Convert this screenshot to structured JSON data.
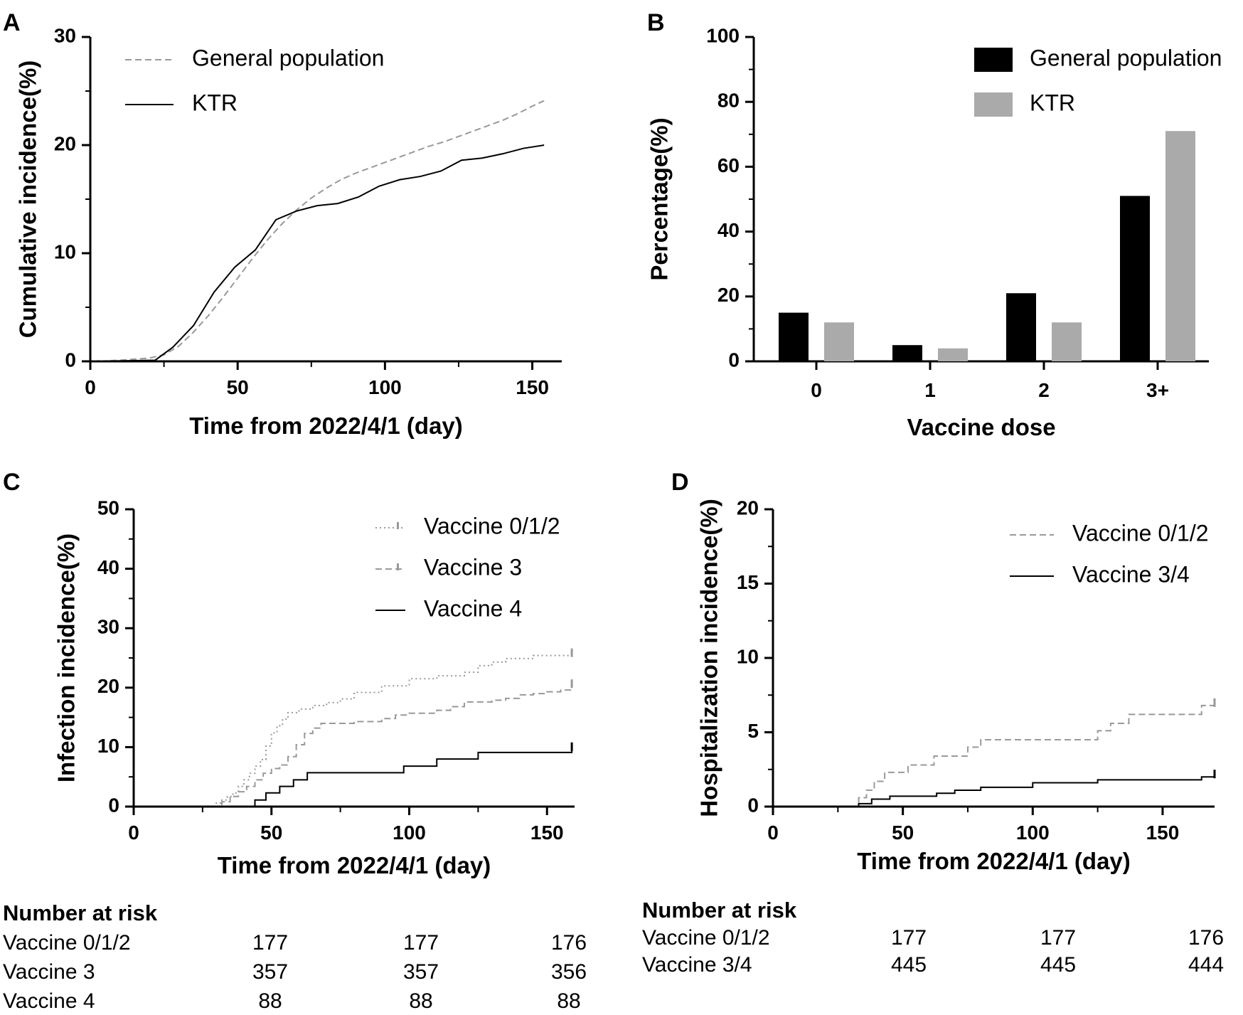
{
  "panels": {
    "A": {
      "label": "A"
    },
    "B": {
      "label": "B"
    },
    "C": {
      "label": "C"
    },
    "D": {
      "label": "D"
    }
  },
  "chart_data": [
    {
      "panel": "A",
      "type": "line",
      "xlabel": "Time from 2022/4/1 (day)",
      "ylabel": "Cumulative incidence(%)",
      "xlim": [
        0,
        160
      ],
      "ylim": [
        0,
        30
      ],
      "xticks": [
        0,
        50,
        100,
        150
      ],
      "yticks": [
        0,
        10,
        20,
        30
      ],
      "legend_position": "top-left",
      "series": [
        {
          "name": "General population",
          "style": "dashed",
          "color": "#999999",
          "x": [
            0,
            10,
            20,
            25,
            30,
            35,
            40,
            45,
            50,
            55,
            60,
            65,
            70,
            75,
            80,
            85,
            90,
            95,
            100,
            105,
            110,
            115,
            120,
            125,
            130,
            135,
            140,
            145,
            150,
            154
          ],
          "y": [
            0,
            0.1,
            0.3,
            0.6,
            1.4,
            2.7,
            4.2,
            5.9,
            7.7,
            9.5,
            11.2,
            12.7,
            14.0,
            15.1,
            16.0,
            16.8,
            17.4,
            17.9,
            18.4,
            18.9,
            19.4,
            19.9,
            20.3,
            20.8,
            21.3,
            21.8,
            22.3,
            22.9,
            23.6,
            24.1
          ]
        },
        {
          "name": "KTR",
          "style": "solid",
          "color": "#000000",
          "x": [
            0,
            22,
            28,
            35,
            42,
            49,
            56,
            63,
            70,
            77,
            84,
            91,
            98,
            105,
            112,
            119,
            126,
            133,
            140,
            147,
            154
          ],
          "y": [
            0,
            0.1,
            1.3,
            3.3,
            6.4,
            8.7,
            10.3,
            13.1,
            13.9,
            14.4,
            14.6,
            15.2,
            16.2,
            16.8,
            17.1,
            17.6,
            18.6,
            18.8,
            19.2,
            19.7,
            20.0
          ]
        }
      ]
    },
    {
      "panel": "B",
      "type": "bar",
      "xlabel": "Vaccine dose",
      "ylabel": "Percentage(%)",
      "categories": [
        "0",
        "1",
        "2",
        "3+"
      ],
      "ylim": [
        0,
        100
      ],
      "yticks": [
        0,
        20,
        40,
        60,
        80,
        100
      ],
      "legend_position": "top-right",
      "series": [
        {
          "name": "General population",
          "color": "#000000",
          "values": [
            15,
            5,
            21,
            51
          ]
        },
        {
          "name": "KTR",
          "color": "#aaaaaa",
          "values": [
            12,
            4,
            12,
            71
          ]
        }
      ]
    },
    {
      "panel": "C",
      "type": "line",
      "xlabel": "Time from 2022/4/1 (day)",
      "ylabel": "Infection incidence(%)",
      "xlim": [
        0,
        160
      ],
      "ylim": [
        0,
        50
      ],
      "xticks": [
        0,
        50,
        100,
        150
      ],
      "yticks": [
        0,
        10,
        20,
        30,
        40,
        50
      ],
      "legend_position": "top-right",
      "series": [
        {
          "name": "Vaccine 0/1/2",
          "style": "dotted",
          "color": "#999999",
          "x": [
            0,
            28,
            30,
            32,
            34,
            36,
            38,
            40,
            42,
            44,
            46,
            48,
            50,
            52,
            54,
            56,
            60,
            65,
            70,
            75,
            80,
            90,
            100,
            110,
            120,
            125,
            130,
            135,
            145,
            150,
            159
          ],
          "y": [
            0,
            0,
            0.6,
            1.1,
            1.7,
            2.3,
            3.4,
            4.5,
            5.6,
            6.8,
            7.9,
            10.2,
            12.4,
            13.6,
            14.7,
            15.8,
            16.4,
            17.0,
            17.5,
            18.1,
            19.2,
            20.3,
            21.5,
            22.0,
            22.6,
            23.7,
            24.3,
            24.9,
            25.4,
            25.4,
            25.4
          ]
        },
        {
          "name": "Vaccine 3",
          "style": "dashed",
          "color": "#999999",
          "x": [
            0,
            29,
            32,
            35,
            38,
            41,
            44,
            47,
            50,
            53,
            56,
            59,
            62,
            65,
            68,
            80,
            90,
            95,
            100,
            110,
            115,
            120,
            130,
            135,
            140,
            145,
            150,
            155,
            159
          ],
          "y": [
            0,
            0,
            0.8,
            1.7,
            2.5,
            3.4,
            4.5,
            5.6,
            6.4,
            7.0,
            8.4,
            10.4,
            12.3,
            13.2,
            14.0,
            14.3,
            14.8,
            15.4,
            15.7,
            16.2,
            16.8,
            17.6,
            17.9,
            18.2,
            18.8,
            19.0,
            19.3,
            19.6,
            20.2
          ]
        },
        {
          "name": "Vaccine 4",
          "style": "solid",
          "color": "#000000",
          "x": [
            0,
            42,
            44,
            48,
            53,
            58,
            63,
            70,
            80,
            90,
            98,
            105,
            110,
            125,
            130,
            140,
            150,
            159
          ],
          "y": [
            0,
            0,
            1.1,
            2.3,
            3.4,
            4.5,
            5.7,
            5.7,
            5.7,
            5.7,
            6.8,
            6.8,
            8.0,
            9.1,
            9.1,
            9.1,
            9.1,
            9.6
          ]
        }
      ]
    },
    {
      "panel": "D",
      "type": "line",
      "xlabel": "Time from 2022/4/1 (day)",
      "ylabel": "Hospitalization incidence(%)",
      "xlim": [
        0,
        170
      ],
      "ylim": [
        0,
        20
      ],
      "xticks": [
        0,
        50,
        100,
        150
      ],
      "yticks": [
        0,
        5,
        10,
        15,
        20
      ],
      "legend_position": "top-right",
      "series": [
        {
          "name": "Vaccine 0/1/2",
          "style": "dashed",
          "color": "#999999",
          "x": [
            0,
            30,
            33,
            36,
            39,
            43,
            46,
            52,
            56,
            62,
            70,
            75,
            80,
            85,
            100,
            115,
            125,
            130,
            137,
            145,
            160,
            165,
            170
          ],
          "y": [
            0,
            0,
            0.6,
            1.1,
            1.7,
            2.3,
            2.3,
            2.8,
            2.8,
            3.4,
            3.4,
            4.0,
            4.5,
            4.5,
            4.5,
            4.5,
            5.1,
            5.6,
            6.2,
            6.2,
            6.2,
            6.8,
            6.8
          ]
        },
        {
          "name": "Vaccine 3/4",
          "style": "solid",
          "color": "#000000",
          "x": [
            0,
            30,
            33,
            38,
            45,
            55,
            63,
            70,
            80,
            90,
            100,
            115,
            125,
            140,
            155,
            160,
            165,
            170
          ],
          "y": [
            0,
            0,
            0.2,
            0.5,
            0.7,
            0.7,
            0.9,
            1.1,
            1.3,
            1.3,
            1.6,
            1.6,
            1.8,
            1.8,
            1.8,
            1.8,
            2.0,
            2.0
          ]
        }
      ]
    }
  ],
  "risk_tables": {
    "C": {
      "title": "Number at risk",
      "rows": [
        {
          "label": "Vaccine 0/1/2",
          "values": [
            "177",
            "177",
            "176"
          ]
        },
        {
          "label": "Vaccine 3",
          "values": [
            "357",
            "357",
            "356"
          ]
        },
        {
          "label": "Vaccine 4",
          "values": [
            "88",
            "88",
            "88"
          ]
        }
      ]
    },
    "D": {
      "title": "Number at risk",
      "rows": [
        {
          "label": "Vaccine 0/1/2",
          "values": [
            "177",
            "177",
            "176"
          ]
        },
        {
          "label": "Vaccine 3/4",
          "values": [
            "445",
            "445",
            "444"
          ]
        }
      ]
    }
  }
}
